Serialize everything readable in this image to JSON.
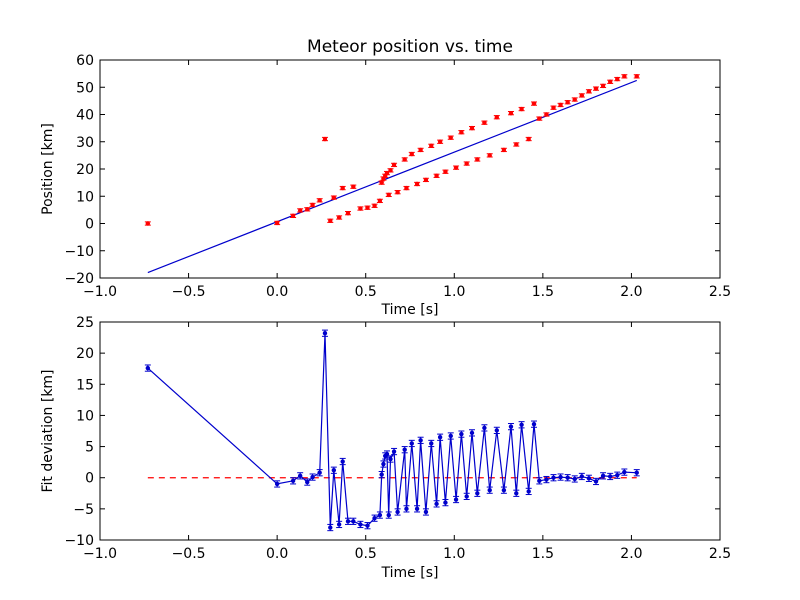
{
  "chart_data": [
    {
      "type": "scatter",
      "title": "Meteor position vs. time",
      "xlabel": "Time [s]",
      "ylabel": "Position [km]",
      "xlim": [
        -1.0,
        2.5
      ],
      "ylim": [
        -20,
        60
      ],
      "xticks": [
        "−1.0",
        "−0.5",
        "0.0",
        "0.5",
        "1.0",
        "1.5",
        "2.0",
        "2.5"
      ],
      "yticks": [
        "−20",
        "−10",
        "0",
        "10",
        "20",
        "30",
        "40",
        "50",
        "60"
      ],
      "grid": false,
      "colors": {
        "points": "#ff0000",
        "fit": "#0000cc"
      },
      "points": {
        "x": [
          -0.73,
          0.0,
          0.09,
          0.13,
          0.17,
          0.2,
          0.24,
          0.27,
          0.3,
          0.32,
          0.35,
          0.37,
          0.4,
          0.43,
          0.47,
          0.51,
          0.55,
          0.58,
          0.59,
          0.6,
          0.61,
          0.62,
          0.63,
          0.64,
          0.66,
          0.68,
          0.72,
          0.73,
          0.76,
          0.79,
          0.81,
          0.84,
          0.87,
          0.9,
          0.92,
          0.95,
          0.98,
          1.01,
          1.04,
          1.07,
          1.1,
          1.13,
          1.17,
          1.2,
          1.24,
          1.28,
          1.32,
          1.35,
          1.38,
          1.42,
          1.45,
          1.48,
          1.52,
          1.56,
          1.6,
          1.64,
          1.68,
          1.72,
          1.76,
          1.8,
          1.84,
          1.88,
          1.92,
          1.96,
          2.03
        ],
        "y": [
          0.0,
          0.2,
          2.8,
          4.8,
          5.2,
          6.8,
          8.5,
          31.0,
          1.0,
          9.5,
          2.2,
          13.0,
          3.8,
          13.5,
          5.5,
          5.8,
          6.5,
          8.3,
          15.0,
          16.5,
          17.5,
          18.5,
          10.5,
          19.5,
          21.5,
          11.5,
          23.5,
          13.0,
          25.5,
          14.5,
          27.0,
          16.0,
          28.5,
          17.5,
          30.0,
          19.0,
          31.5,
          20.5,
          33.5,
          22.0,
          35.0,
          23.5,
          37.0,
          25.0,
          39.0,
          27.0,
          40.5,
          29.0,
          42.0,
          31.0,
          44.0,
          38.5,
          40.0,
          42.5,
          43.5,
          44.5,
          45.5,
          47.0,
          48.5,
          49.5,
          50.5,
          52.0,
          53.0,
          54.0,
          54.0
        ],
        "yerr": 0.6
      },
      "fit_line": {
        "x": [
          -0.73,
          2.03
        ],
        "y": [
          -18,
          52.5
        ]
      }
    },
    {
      "type": "line",
      "title": "",
      "xlabel": "Time [s]",
      "ylabel": "Fit deviation [km]",
      "xlim": [
        -1.0,
        2.5
      ],
      "ylim": [
        -10,
        25
      ],
      "xticks": [
        "−1.0",
        "−0.5",
        "0.0",
        "0.5",
        "1.0",
        "1.5",
        "2.0",
        "2.5"
      ],
      "yticks": [
        "−10",
        "−5",
        "0",
        "5",
        "10",
        "15",
        "20",
        "25"
      ],
      "grid": false,
      "colors": {
        "line": "#0000cc",
        "zero": "#ff0000"
      },
      "series": {
        "x": [
          -0.73,
          0.0,
          0.09,
          0.13,
          0.17,
          0.2,
          0.24,
          0.27,
          0.3,
          0.32,
          0.35,
          0.37,
          0.4,
          0.43,
          0.47,
          0.51,
          0.55,
          0.58,
          0.59,
          0.6,
          0.61,
          0.62,
          0.63,
          0.64,
          0.66,
          0.68,
          0.72,
          0.73,
          0.76,
          0.79,
          0.81,
          0.84,
          0.87,
          0.9,
          0.92,
          0.95,
          0.98,
          1.01,
          1.04,
          1.07,
          1.1,
          1.13,
          1.17,
          1.2,
          1.24,
          1.28,
          1.32,
          1.35,
          1.38,
          1.42,
          1.45,
          1.48,
          1.52,
          1.56,
          1.6,
          1.64,
          1.68,
          1.72,
          1.76,
          1.8,
          1.84,
          1.88,
          1.92,
          1.96,
          2.03
        ],
        "y": [
          17.6,
          -1.0,
          -0.5,
          0.3,
          -0.7,
          0.1,
          0.8,
          23.2,
          -8.0,
          1.2,
          -7.5,
          2.6,
          -7.0,
          -7.0,
          -7.5,
          -7.7,
          -6.5,
          -6.0,
          0.5,
          2.2,
          3.5,
          3.8,
          -6.0,
          3.0,
          4.2,
          -5.5,
          4.5,
          -5.0,
          5.5,
          -5.0,
          6.0,
          -5.5,
          5.5,
          -4.2,
          6.5,
          -4.0,
          6.7,
          -3.5,
          7.0,
          -3.0,
          7.2,
          -2.5,
          8.0,
          -2.0,
          7.6,
          -2.0,
          8.2,
          -2.5,
          8.5,
          -2.2,
          8.6,
          -0.5,
          -0.3,
          0.0,
          0.1,
          0.0,
          -0.2,
          0.2,
          -0.1,
          -0.6,
          0.3,
          0.2,
          0.4,
          0.9,
          0.8
        ],
        "yerr": 0.5
      },
      "zero_line": 0
    }
  ]
}
